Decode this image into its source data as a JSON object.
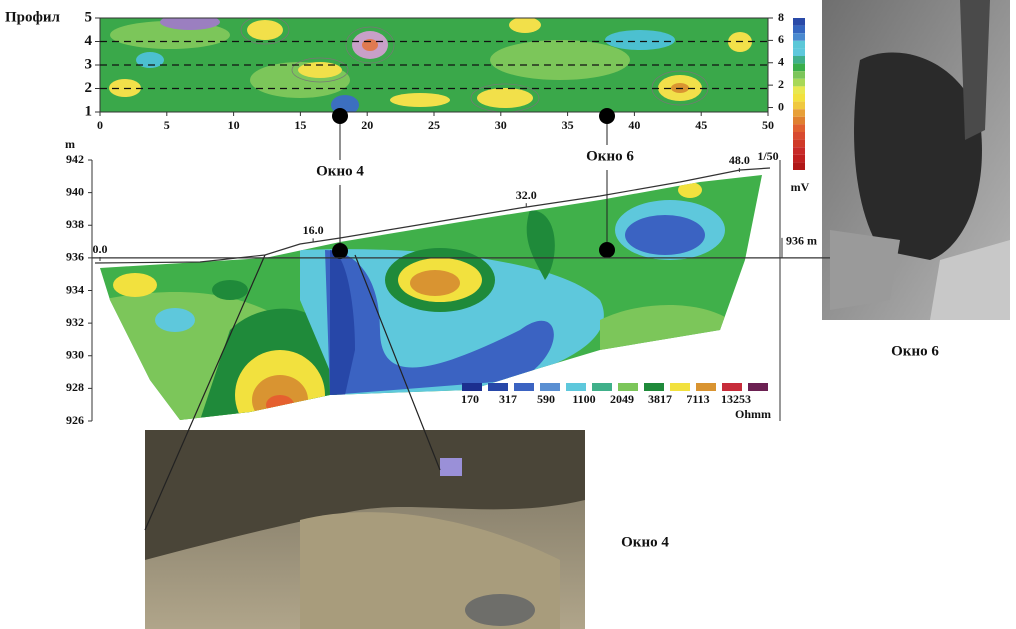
{
  "figure": {
    "map": {
      "y_label": "Профил",
      "ylim": [
        1,
        5
      ],
      "yticks": [
        1,
        2,
        3,
        4,
        5
      ],
      "xlim": [
        0,
        50
      ],
      "xticks": [
        0,
        5,
        10,
        15,
        20,
        25,
        30,
        35,
        40,
        45,
        50
      ],
      "y2lim": [
        -0.4,
        8
      ],
      "y2ticks": [
        0,
        2,
        4,
        6,
        8
      ],
      "colorbar_unit": "mV"
    },
    "section": {
      "y_unit": "m",
      "ylim": [
        926,
        942
      ],
      "yticks": [
        926,
        928,
        930,
        932,
        934,
        936,
        938,
        940,
        942
      ],
      "xlim": [
        0,
        50
      ],
      "xticks": [
        {
          "value": 0,
          "label": "0.0"
        },
        {
          "value": 16,
          "label": "16.0"
        },
        {
          "value": 32,
          "label": "32.0"
        },
        {
          "value": 48,
          "label": "48.0"
        }
      ],
      "profile_name": "1/50",
      "level": {
        "value": 936,
        "label": "936 m"
      },
      "legend_values": [
        170,
        317,
        590,
        1100,
        2049,
        3817,
        7113,
        13253
      ],
      "legend_colors": [
        "#1b2f8f",
        "#2747a8",
        "#3b63c2",
        "#5a8fd2",
        "#5ec8dc",
        "#40b08a",
        "#7cc65a",
        "#1f8a3a",
        "#f2e13e",
        "#d99431",
        "#c72c3a",
        "#6b2052"
      ],
      "legend_unit": "Ohmm"
    },
    "windows": [
      {
        "label": "Окно 4",
        "photo_label": "Окно 4"
      },
      {
        "label": "Окно 6",
        "photo_label": "Окно 6"
      }
    ]
  }
}
